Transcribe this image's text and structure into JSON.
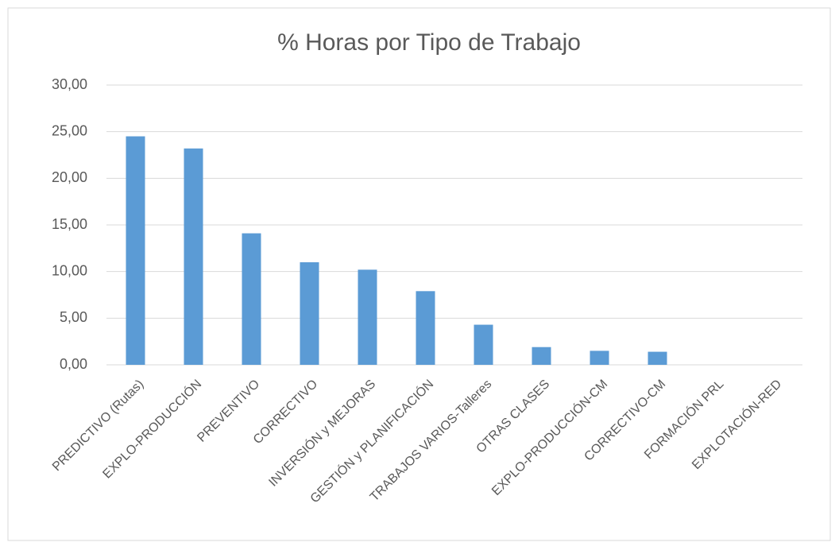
{
  "chart_data": {
    "type": "bar",
    "title": "% Horas por Tipo de Trabajo",
    "categories": [
      "PREDICTIVO (Rutas)",
      "EXPLO-PRODUCCIÓN",
      "PREVENTIVO",
      "CORRECTIVO",
      "INVERSIÓN y MEJORAS",
      "GESTIÓN y PLANIFICACIÓN",
      "TRABAJOS VARIOS-Talleres",
      "OTRAS CLASES",
      "EXPLO-PRODUCCIÓN-CM",
      "CORRECTIVO-CM",
      "FORMACIÓN PRL",
      "EXPLOTACIÓN-RED"
    ],
    "values": [
      24.5,
      23.2,
      14.1,
      11.0,
      10.2,
      7.9,
      4.3,
      1.9,
      1.5,
      1.4,
      0,
      0
    ],
    "color": "#5b9bd5",
    "ylim": [
      0,
      30
    ],
    "yticks": [
      {
        "value": 0,
        "label": "0,00"
      },
      {
        "value": 5,
        "label": "5,00"
      },
      {
        "value": 10,
        "label": "10,00"
      },
      {
        "value": 15,
        "label": "15,00"
      },
      {
        "value": 20,
        "label": "20,00"
      },
      {
        "value": 25,
        "label": "25,00"
      },
      {
        "value": 30,
        "label": "30,00"
      }
    ],
    "grid": true
  }
}
